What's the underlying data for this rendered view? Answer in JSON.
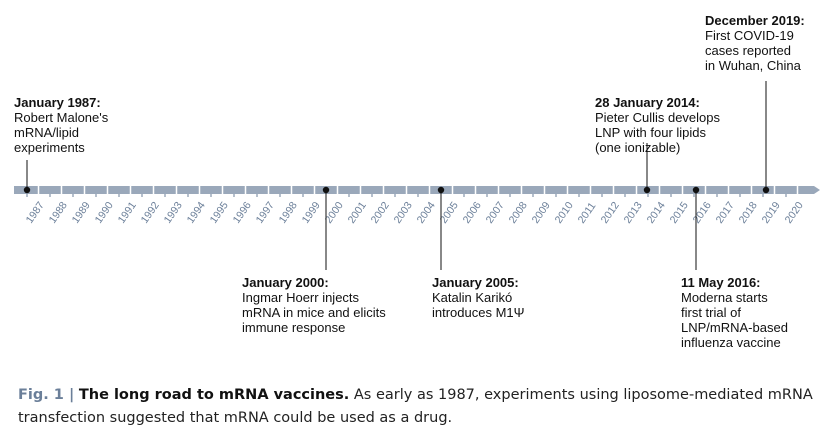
{
  "timeline": {
    "start_year": 1987,
    "end_year": 2020,
    "years": [
      "1987",
      "1988",
      "1989",
      "1990",
      "1991",
      "1992",
      "1993",
      "1994",
      "1995",
      "1996",
      "1997",
      "1998",
      "1999",
      "2000",
      "2001",
      "2002",
      "2003",
      "2004",
      "2005",
      "2006",
      "2007",
      "2008",
      "2009",
      "2010",
      "2011",
      "2012",
      "2013",
      "2014",
      "2015",
      "2016",
      "2017",
      "2018",
      "2019",
      "2020"
    ],
    "bar_color": "#9aa8ba",
    "events": [
      {
        "id": "malone",
        "year": 1987,
        "date": "January 1987:",
        "lines": [
          "Robert Malone's",
          "mRNA/lipid",
          "experiments"
        ]
      },
      {
        "id": "hoerr",
        "year": 2000,
        "date": "January 2000:",
        "lines": [
          "Ingmar Hoerr injects",
          "mRNA in mice and elicits",
          "immune response"
        ]
      },
      {
        "id": "kariko",
        "year": 2005,
        "date": "January 2005:",
        "lines": [
          "Katalin Karikó",
          "introduces M1Ψ"
        ]
      },
      {
        "id": "cullis",
        "year": 2014,
        "date": "28 January 2014:",
        "lines": [
          "Pieter Cullis develops",
          "LNP with four lipids",
          "(one ionizable)"
        ]
      },
      {
        "id": "moderna",
        "year": 2016,
        "date": "11 May 2016:",
        "lines": [
          "Moderna starts",
          "first trial of",
          "LNP/mRNA-based",
          "influenza vaccine"
        ]
      },
      {
        "id": "covid",
        "year": 2019,
        "date": "December 2019:",
        "lines": [
          "First COVID-19",
          "cases reported",
          "in Wuhan, China"
        ]
      }
    ]
  },
  "caption": {
    "label": "Fig. 1 |",
    "title": "The long road to mRNA vaccines.",
    "text": "As early as 1987, experiments using liposome-mediated mRNA transfection suggested that mRNA could be used as a drug."
  }
}
